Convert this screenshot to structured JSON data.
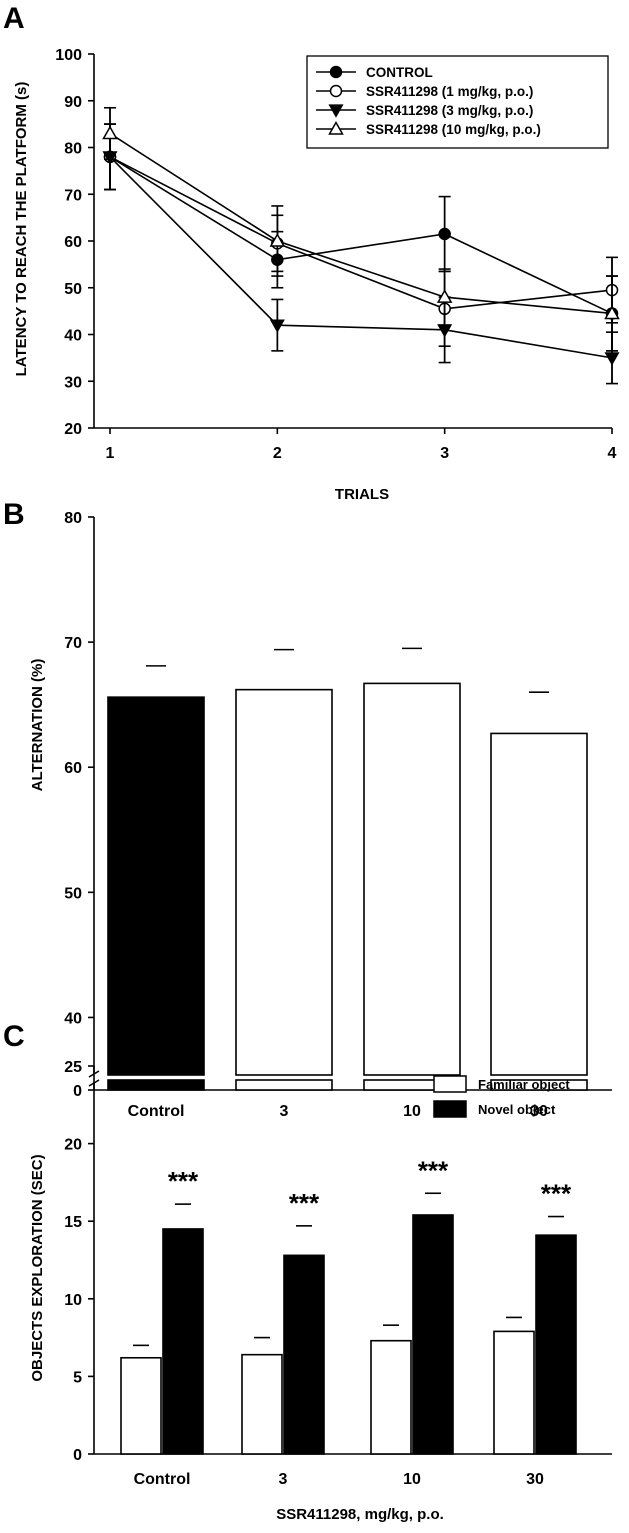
{
  "chart_data": [
    {
      "panel": "A",
      "type": "line",
      "xlabel": "TRIALS",
      "ylabel": "LATENCY TO REACH THE PLATFORM (s)",
      "x": [
        1,
        2,
        3,
        4
      ],
      "xlim": [
        1,
        4
      ],
      "ylim": [
        20,
        100
      ],
      "yticks": [
        20,
        30,
        40,
        50,
        60,
        70,
        80,
        90,
        100
      ],
      "legend_position": "top-right",
      "series": [
        {
          "name": "CONTROL",
          "marker": "circle-filled",
          "values": [
            78,
            56,
            61.5,
            44.5
          ],
          "errors": [
            7,
            6,
            8,
            8
          ]
        },
        {
          "name": "SSR411298 (1 mg/kg, p.o.)",
          "marker": "circle-open",
          "values": [
            78,
            59.5,
            45.5,
            49.5
          ],
          "errors": [
            7,
            6,
            8,
            7
          ]
        },
        {
          "name": "SSR411298 (3 mg/kg, p.o.)",
          "marker": "triangle-down-filled",
          "values": [
            78,
            42,
            41,
            35
          ],
          "errors": [
            7,
            5.5,
            7,
            5.5
          ]
        },
        {
          "name": "SSR411298 (10 mg/kg, p.o.)",
          "marker": "triangle-up-open",
          "values": [
            83,
            60,
            48,
            44.5
          ],
          "errors": [
            5.5,
            7.5,
            6,
            8
          ]
        }
      ]
    },
    {
      "panel": "B",
      "type": "bar",
      "ylabel": "ALTERNATION (%)",
      "categories": [
        "Control",
        "3",
        "10",
        "30"
      ],
      "values": [
        65.6,
        66.2,
        66.7,
        62.7
      ],
      "errors": [
        2.5,
        3.2,
        2.8,
        3.3
      ],
      "fills": [
        "#000000",
        "#ffffff",
        "#ffffff",
        "#ffffff"
      ],
      "ylim": [
        35,
        80
      ],
      "yticks": [
        40,
        50,
        60,
        70,
        80
      ],
      "axis_break": true,
      "zero_label": "0"
    },
    {
      "panel": "C",
      "type": "bar",
      "xlabel": "SSR411298, mg/kg, p.o.",
      "ylabel": "OBJECTS EXPLORATION (SEC)",
      "categories": [
        "Control",
        "3",
        "10",
        "30"
      ],
      "ylim": [
        0,
        25
      ],
      "yticks": [
        0,
        5,
        10,
        15,
        20,
        25
      ],
      "legend_position": "top-right",
      "series": [
        {
          "name": "Familiar object",
          "fill": "#ffffff",
          "values": [
            6.2,
            6.4,
            7.3,
            7.9
          ],
          "errors": [
            0.8,
            1.1,
            1.0,
            0.9
          ]
        },
        {
          "name": "Novel object",
          "fill": "#000000",
          "values": [
            14.5,
            12.8,
            15.4,
            14.1
          ],
          "errors": [
            1.6,
            1.9,
            1.4,
            1.2
          ]
        }
      ],
      "annotations": [
        "***",
        "***",
        "***",
        "***"
      ]
    }
  ]
}
